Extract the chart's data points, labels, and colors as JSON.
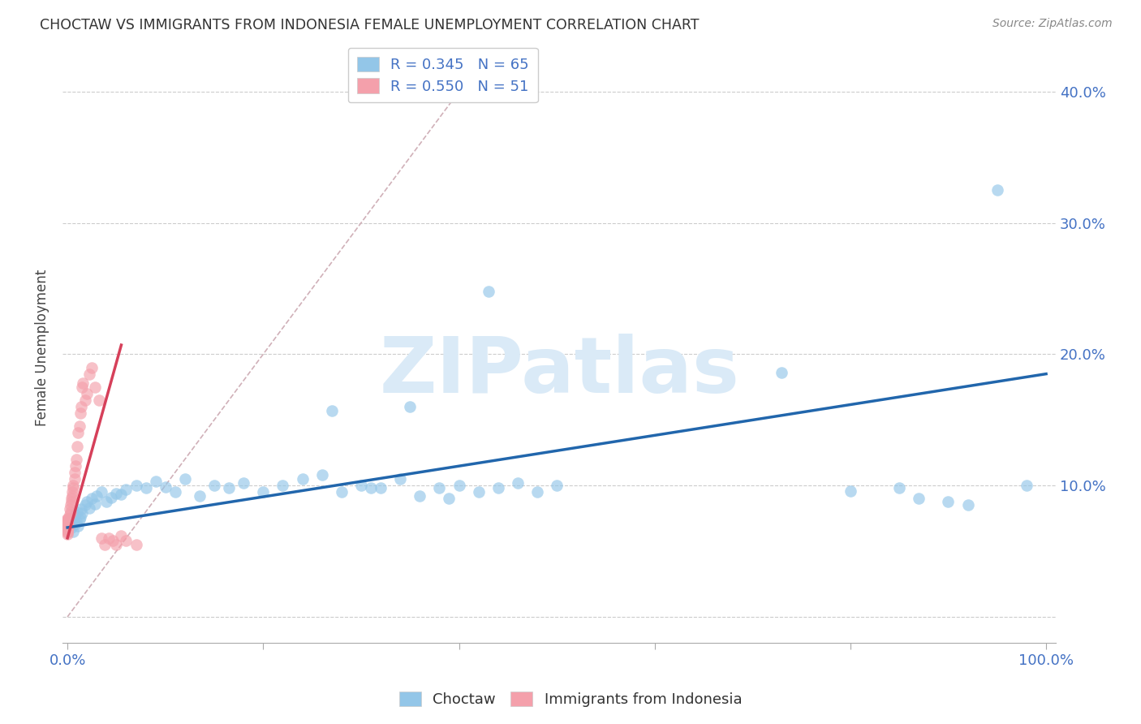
{
  "title": "CHOCTAW VS IMMIGRANTS FROM INDONESIA FEMALE UNEMPLOYMENT CORRELATION CHART",
  "source": "Source: ZipAtlas.com",
  "ylabel": "Female Unemployment",
  "background_color": "#ffffff",
  "watermark": "ZIPatlas",
  "watermark_color": "#daeaf7",
  "blue_color": "#93c6e8",
  "pink_color": "#f4a0ab",
  "blue_line_color": "#2166ac",
  "pink_line_color": "#d6405a",
  "diag_line_color": "#d0b0b8",
  "legend_blue_label": "R = 0.345   N = 65",
  "legend_pink_label": "R = 0.550   N = 51",
  "series1_label": "Choctaw",
  "series2_label": "Immigrants from Indonesia",
  "xlim": [
    -0.005,
    1.01
  ],
  "ylim": [
    -0.02,
    0.43
  ],
  "ytick_positions": [
    0.0,
    0.1,
    0.2,
    0.3,
    0.4
  ],
  "xtick_positions": [
    0.0,
    0.2,
    0.4,
    0.6,
    0.8,
    1.0
  ],
  "blue_scatter_x": [
    0.002,
    0.003,
    0.004,
    0.005,
    0.006,
    0.007,
    0.008,
    0.009,
    0.01,
    0.011,
    0.012,
    0.013,
    0.014,
    0.015,
    0.018,
    0.02,
    0.022,
    0.025,
    0.028,
    0.03,
    0.035,
    0.04,
    0.045,
    0.05,
    0.055,
    0.06,
    0.07,
    0.08,
    0.09,
    0.1,
    0.11,
    0.12,
    0.135,
    0.15,
    0.165,
    0.18,
    0.2,
    0.22,
    0.24,
    0.26,
    0.28,
    0.3,
    0.32,
    0.34,
    0.36,
    0.38,
    0.4,
    0.42,
    0.44,
    0.46,
    0.48,
    0.5,
    0.27,
    0.31,
    0.35,
    0.39,
    0.43,
    0.73,
    0.8,
    0.85,
    0.87,
    0.9,
    0.92,
    0.95,
    0.98
  ],
  "blue_scatter_y": [
    0.07,
    0.075,
    0.068,
    0.072,
    0.065,
    0.078,
    0.071,
    0.073,
    0.08,
    0.069,
    0.074,
    0.076,
    0.082,
    0.079,
    0.085,
    0.088,
    0.083,
    0.09,
    0.086,
    0.092,
    0.095,
    0.088,
    0.091,
    0.094,
    0.093,
    0.097,
    0.1,
    0.098,
    0.103,
    0.099,
    0.095,
    0.105,
    0.092,
    0.1,
    0.098,
    0.102,
    0.095,
    0.1,
    0.105,
    0.108,
    0.095,
    0.1,
    0.098,
    0.105,
    0.092,
    0.098,
    0.1,
    0.095,
    0.098,
    0.102,
    0.095,
    0.1,
    0.157,
    0.098,
    0.16,
    0.09,
    0.248,
    0.186,
    0.096,
    0.098,
    0.09,
    0.088,
    0.085,
    0.325,
    0.1
  ],
  "pink_scatter_x": [
    0.0,
    0.0,
    0.0,
    0.0,
    0.0,
    0.0,
    0.0,
    0.0,
    0.0,
    0.0,
    0.0,
    0.0,
    0.0,
    0.001,
    0.001,
    0.001,
    0.002,
    0.002,
    0.003,
    0.003,
    0.004,
    0.004,
    0.005,
    0.005,
    0.006,
    0.006,
    0.007,
    0.007,
    0.008,
    0.009,
    0.01,
    0.011,
    0.012,
    0.013,
    0.014,
    0.015,
    0.016,
    0.018,
    0.02,
    0.022,
    0.025,
    0.028,
    0.032,
    0.035,
    0.038,
    0.042,
    0.046,
    0.05,
    0.055,
    0.06,
    0.07
  ],
  "pink_scatter_y": [
    0.07,
    0.068,
    0.072,
    0.065,
    0.075,
    0.067,
    0.071,
    0.064,
    0.069,
    0.073,
    0.066,
    0.074,
    0.063,
    0.07,
    0.075,
    0.068,
    0.078,
    0.082,
    0.08,
    0.085,
    0.09,
    0.088,
    0.095,
    0.092,
    0.1,
    0.098,
    0.11,
    0.105,
    0.115,
    0.12,
    0.13,
    0.14,
    0.145,
    0.155,
    0.16,
    0.175,
    0.178,
    0.165,
    0.17,
    0.185,
    0.19,
    0.175,
    0.165,
    0.06,
    0.055,
    0.06,
    0.058,
    0.055,
    0.062,
    0.058,
    0.055
  ],
  "blue_line_x": [
    0.0,
    1.0
  ],
  "blue_line_y": [
    0.068,
    0.185
  ],
  "pink_line_x": [
    0.0,
    0.055
  ],
  "pink_line_y": [
    0.06,
    0.207
  ],
  "diag_line_x": [
    0.0,
    0.42
  ],
  "diag_line_y": [
    0.0,
    0.42
  ]
}
